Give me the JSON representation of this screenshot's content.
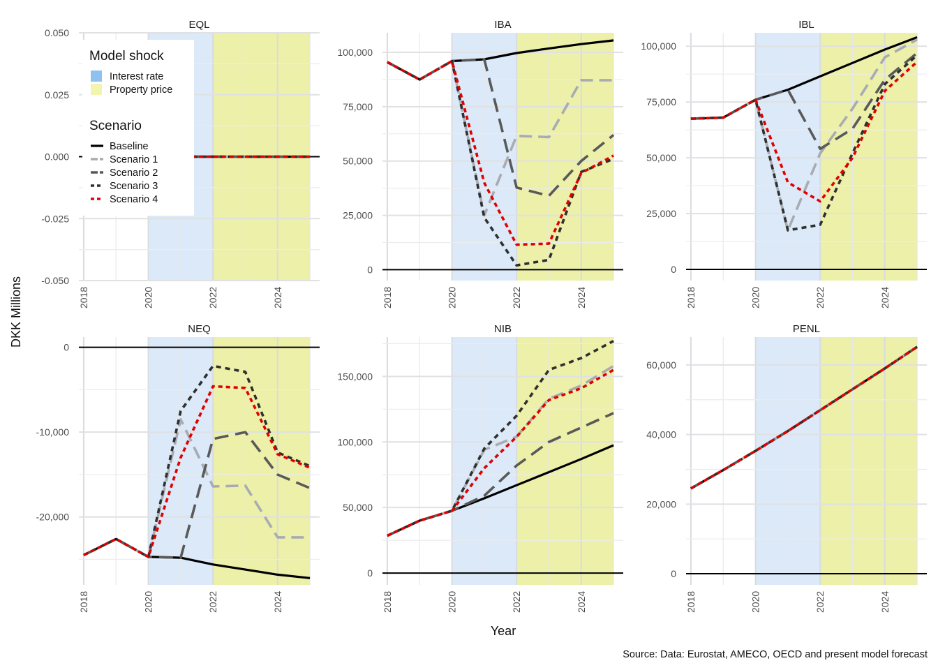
{
  "chart_data": {
    "type": "line",
    "layout": "facet-grid 2x3",
    "y_axis_title": "DKK Millions",
    "x_axis_title": "Year",
    "caption": "Source: Data: Eurostat, AMECO, OECD and present model forecast",
    "x_ticks": [
      2018,
      2020,
      2022,
      2024
    ],
    "x_ticks_text": [
      "2018",
      "2020",
      "2022",
      "2024"
    ],
    "xlim": [
      2017.85,
      2025.3
    ],
    "shocks": [
      {
        "name": "Interest rate",
        "from": 2020,
        "to": 2022,
        "color": "#dbe9f8",
        "swatch": "#8ec1ef"
      },
      {
        "name": "Property price",
        "from": 2022,
        "to": 2025,
        "color": "#ecf0a8",
        "swatch": "#f2f4b0"
      }
    ],
    "legend": {
      "shock_title": "Model shock",
      "shock_items": [
        "Interest rate",
        "Property price"
      ],
      "scenario_title": "Scenario",
      "scenario_items": [
        "Baseline",
        "Scenario 1",
        "Scenario 2",
        "Scenario 3",
        "Scenario 4"
      ]
    },
    "series_styles": [
      {
        "name": "Baseline",
        "color": "#000000",
        "dash": "none",
        "width": 3.2
      },
      {
        "name": "Scenario 1",
        "color": "#a9abb2",
        "dash": "18,9",
        "width": 3.6
      },
      {
        "name": "Scenario 2",
        "color": "#595959",
        "dash": "20,10",
        "width": 3.6
      },
      {
        "name": "Scenario 3",
        "color": "#2f2f2f",
        "dash": "7,6",
        "width": 3.6
      },
      {
        "name": "Scenario 4",
        "color": "#e00000",
        "dash": "6,5",
        "width": 3.6
      }
    ],
    "x": [
      2018,
      2019,
      2020,
      2021,
      2022,
      2023,
      2024,
      2025
    ],
    "panels": [
      {
        "title": "EQL",
        "ylim": [
          -0.05,
          0.05
        ],
        "yticks": [
          -0.05,
          -0.025,
          0,
          0.025,
          0.05
        ],
        "yticks_text": [
          "-0.050",
          "-0.025",
          "0.000",
          "0.025",
          "0.050"
        ],
        "series": [
          {
            "name": "Baseline",
            "values": [
              0,
              0,
              0,
              0,
              0,
              0,
              0,
              0
            ]
          },
          {
            "name": "Scenario 1",
            "values": [
              0,
              0,
              0,
              0,
              0,
              0,
              0,
              0
            ]
          },
          {
            "name": "Scenario 2",
            "values": [
              0,
              0,
              0,
              0,
              0,
              0,
              0,
              0
            ]
          },
          {
            "name": "Scenario 3",
            "values": [
              0,
              0,
              0,
              0,
              0,
              0,
              0,
              0
            ]
          },
          {
            "name": "Scenario 4",
            "values": [
              0,
              0,
              0,
              0,
              0,
              0,
              0,
              0
            ]
          }
        ]
      },
      {
        "title": "IBA",
        "ylim": [
          -5000,
          109000
        ],
        "yticks": [
          0,
          25000,
          50000,
          75000,
          100000
        ],
        "yticks_text": [
          "0",
          "25,000",
          "50,000",
          "75,000",
          "100,000"
        ],
        "series": [
          {
            "name": "Baseline",
            "values": [
              95500,
              87500,
              96000,
              96800,
              99700,
              101800,
              103800,
              105500
            ]
          },
          {
            "name": "Scenario 1",
            "values": [
              95500,
              87500,
              96000,
              25000,
              61600,
              61000,
              87200,
              87200
            ]
          },
          {
            "name": "Scenario 2",
            "values": [
              95500,
              87500,
              96000,
              96800,
              37800,
              34000,
              50000,
              62000
            ]
          },
          {
            "name": "Scenario 3",
            "values": [
              95500,
              87500,
              96000,
              24000,
              2000,
              4500,
              45000,
              51000
            ]
          },
          {
            "name": "Scenario 4",
            "values": [
              95500,
              87500,
              96000,
              40000,
              11500,
              12000,
              44500,
              52500
            ]
          }
        ]
      },
      {
        "title": "IBL",
        "ylim": [
          -5000,
          106000
        ],
        "yticks": [
          0,
          25000,
          50000,
          75000,
          100000
        ],
        "yticks_text": [
          "0",
          "25,000",
          "50,000",
          "75,000",
          "100,000"
        ],
        "series": [
          {
            "name": "Baseline",
            "values": [
              67500,
              68000,
              76000,
              80500,
              86500,
              92500,
              98500,
              104000
            ]
          },
          {
            "name": "Scenario 1",
            "values": [
              67500,
              68000,
              76000,
              17500,
              52000,
              72000,
              95000,
              103000
            ]
          },
          {
            "name": "Scenario 2",
            "values": [
              67500,
              68000,
              76000,
              80500,
              54000,
              63000,
              85000,
              97000
            ]
          },
          {
            "name": "Scenario 3",
            "values": [
              67500,
              68000,
              76000,
              17500,
              20000,
              52000,
              83000,
              96000
            ]
          },
          {
            "name": "Scenario 4",
            "values": [
              67500,
              68000,
              76000,
              39000,
              30500,
              50000,
              80000,
              93000
            ]
          }
        ]
      },
      {
        "title": "NEQ",
        "ylim": [
          -28000,
          1200
        ],
        "yticks": [
          -20000,
          -10000,
          0
        ],
        "yticks_text": [
          "-20,000",
          "-10,000",
          "0"
        ],
        "series": [
          {
            "name": "Baseline",
            "values": [
              -24500,
              -22600,
              -24700,
              -24800,
              -25600,
              -26200,
              -26800,
              -27200
            ]
          },
          {
            "name": "Scenario 1",
            "values": [
              -24500,
              -22600,
              -24700,
              -8500,
              -16400,
              -16300,
              -22400,
              -22400
            ]
          },
          {
            "name": "Scenario 2",
            "values": [
              -24500,
              -22600,
              -24700,
              -24800,
              -10800,
              -10000,
              -15000,
              -16600
            ]
          },
          {
            "name": "Scenario 3",
            "values": [
              -24500,
              -22600,
              -24700,
              -7500,
              -2200,
              -2900,
              -12400,
              -14000
            ]
          },
          {
            "name": "Scenario 4",
            "values": [
              -24500,
              -22600,
              -24700,
              -13000,
              -4600,
              -4800,
              -12600,
              -14200
            ]
          }
        ]
      },
      {
        "title": "NIB",
        "ylim": [
          -9000,
          180000
        ],
        "yticks": [
          0,
          50000,
          100000,
          150000
        ],
        "yticks_text": [
          "0",
          "50,000",
          "100,000",
          "150,000"
        ],
        "series": [
          {
            "name": "Baseline",
            "values": [
              28500,
              40000,
              47500,
              57000,
              67000,
              77000,
              87000,
              97500
            ]
          },
          {
            "name": "Scenario 1",
            "values": [
              28500,
              40000,
              47500,
              94000,
              104000,
              133000,
              143000,
              158000
            ]
          },
          {
            "name": "Scenario 2",
            "values": [
              28500,
              40000,
              47500,
              59000,
              82000,
              100000,
              111000,
              122000
            ]
          },
          {
            "name": "Scenario 3",
            "values": [
              28500,
              40000,
              47500,
              95000,
              120000,
              155000,
              164000,
              177000
            ]
          },
          {
            "name": "Scenario 4",
            "values": [
              28500,
              40000,
              47500,
              80000,
              104000,
              132000,
              141000,
              155000
            ]
          }
        ]
      },
      {
        "title": "PENL",
        "ylim": [
          -3200,
          68000
        ],
        "yticks": [
          0,
          20000,
          40000,
          60000
        ],
        "yticks_text": [
          "0",
          "20,000",
          "40,000",
          "60,000"
        ],
        "series": [
          {
            "name": "Baseline",
            "values": [
              24500,
              29800,
              35300,
              41000,
              47000,
              53000,
              59000,
              65200
            ]
          },
          {
            "name": "Scenario 1",
            "values": [
              24500,
              29800,
              35300,
              41000,
              47000,
              53000,
              59000,
              65200
            ]
          },
          {
            "name": "Scenario 2",
            "values": [
              24500,
              29800,
              35300,
              41000,
              47000,
              53000,
              59000,
              65200
            ]
          },
          {
            "name": "Scenario 3",
            "values": [
              24500,
              29800,
              35300,
              41000,
              47000,
              53000,
              59000,
              65200
            ]
          },
          {
            "name": "Scenario 4",
            "values": [
              24500,
              29800,
              35300,
              41000,
              47000,
              53000,
              59000,
              65200
            ]
          }
        ]
      }
    ]
  }
}
